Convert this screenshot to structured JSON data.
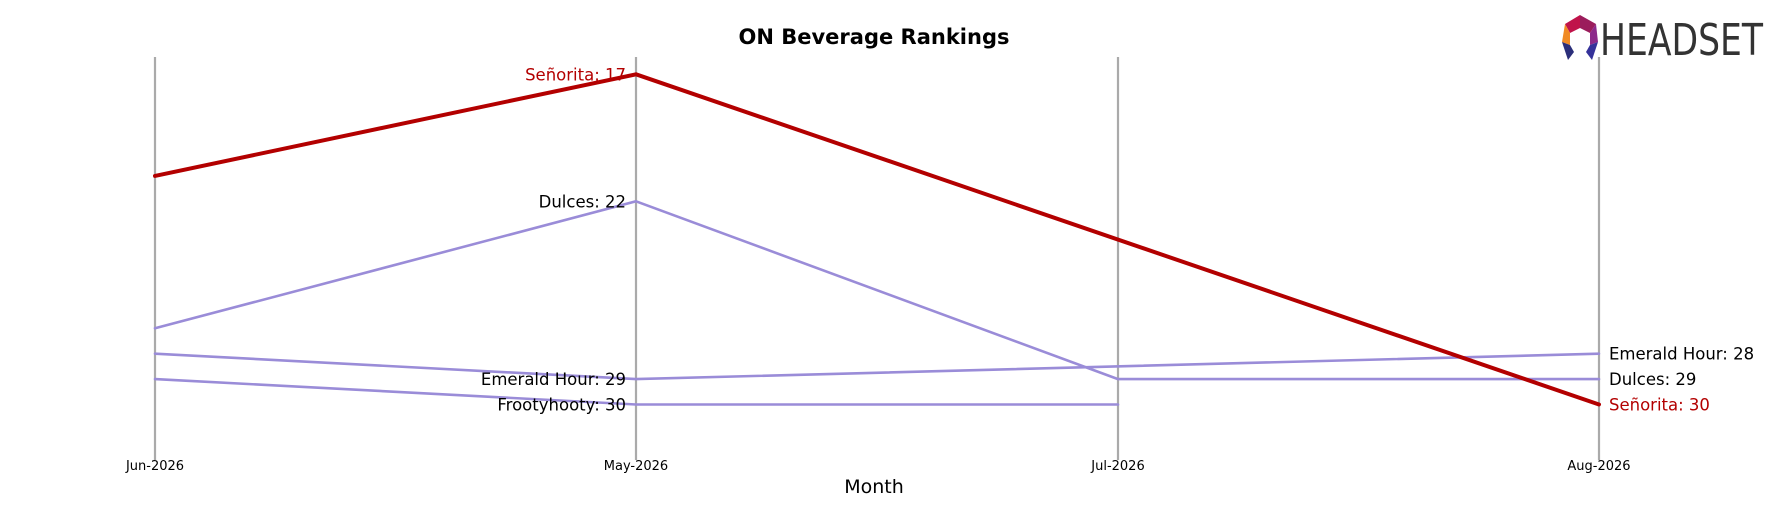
{
  "chart_data": {
    "type": "line",
    "title": "ON Beverage Rankings",
    "xlabel": "Month",
    "ylabel": "",
    "categories": [
      "Jun-2026",
      "May-2026",
      "Jul-2026",
      "Aug-2026"
    ],
    "y_inverted": true,
    "ylim": [
      13,
      33
    ],
    "grid": false,
    "series": [
      {
        "name": "Señorita",
        "values": [
          21,
          17,
          null,
          30
        ],
        "highlight": true
      },
      {
        "name": "Dulces",
        "values": [
          27,
          22,
          29,
          29
        ],
        "highlight": false
      },
      {
        "name": "Emerald Hour",
        "values": [
          28,
          29,
          null,
          28
        ],
        "highlight": false
      },
      {
        "name": "Frootyhooty",
        "values": [
          29,
          30,
          30,
          null
        ],
        "highlight": false
      }
    ],
    "data_labels": [
      {
        "series": "Señorita",
        "category": "May-2026",
        "text": "Señorita: 17",
        "side": "left"
      },
      {
        "series": "Dulces",
        "category": "May-2026",
        "text": "Dulces: 22",
        "side": "left"
      },
      {
        "series": "Emerald Hour",
        "category": "May-2026",
        "text": "Emerald Hour: 29",
        "side": "left"
      },
      {
        "series": "Frootyhooty",
        "category": "May-2026",
        "text": "Frootyhooty: 30",
        "side": "left"
      },
      {
        "series": "Emerald Hour",
        "category": "Aug-2026",
        "text": "Emerald Hour: 28",
        "side": "right"
      },
      {
        "series": "Dulces",
        "category": "Aug-2026",
        "text": "Dulces: 29",
        "side": "right"
      },
      {
        "series": "Señorita",
        "category": "Aug-2026",
        "text": "Señorita: 30",
        "side": "right"
      }
    ],
    "colors": {
      "highlight": "#b30000",
      "other": "#9a8cd8",
      "guide": "#aaaaaa"
    }
  },
  "logo": {
    "text": "HEADSET"
  }
}
